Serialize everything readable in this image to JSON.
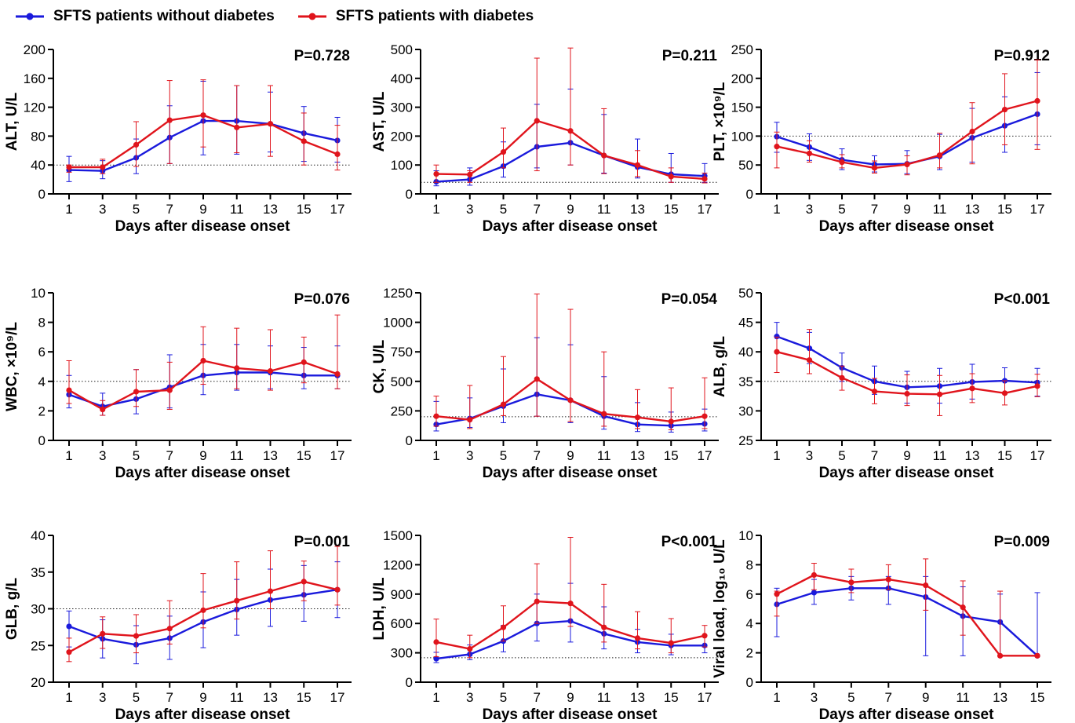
{
  "legend": [
    {
      "name": "SFTS patients without diabetes",
      "color": "#1a1adc"
    },
    {
      "name": "SFTS patients with diabetes",
      "color": "#e0141c"
    }
  ],
  "chart_data": [
    {
      "type": "line",
      "ylabel": "ALT, U/L",
      "xlabel": "Days after disease onset",
      "pvalue": "P=0.728",
      "ylim": [
        0,
        200
      ],
      "yticks": [
        0,
        40,
        80,
        120,
        160,
        200
      ],
      "reference": 40,
      "x": [
        1,
        3,
        5,
        7,
        9,
        11,
        13,
        15,
        17
      ],
      "series": [
        {
          "values": [
            33,
            32,
            50,
            78,
            101,
            101,
            97,
            84,
            74
          ],
          "err_low": [
            17,
            21,
            28,
            42,
            54,
            55,
            58,
            45,
            44
          ],
          "err_high": [
            52,
            46,
            76,
            122,
            156,
            150,
            141,
            121,
            106
          ]
        },
        {
          "values": [
            37,
            37,
            68,
            102,
            109,
            92,
            97,
            73,
            55
          ],
          "err_low": [
            30,
            28,
            38,
            42,
            65,
            57,
            52,
            40,
            33
          ],
          "err_high": [
            40,
            48,
            100,
            157,
            158,
            150,
            150,
            112,
            95
          ]
        }
      ]
    },
    {
      "type": "line",
      "ylabel": "AST, U/L",
      "xlabel": "Days after disease onset",
      "pvalue": "P=0.211",
      "ylim": [
        0,
        500
      ],
      "yticks": [
        0,
        100,
        200,
        300,
        400,
        500
      ],
      "reference": 40,
      "x": [
        1,
        3,
        5,
        7,
        9,
        11,
        13,
        15,
        17
      ],
      "series": [
        {
          "values": [
            42,
            50,
            96,
            163,
            177,
            133,
            93,
            68,
            62
          ],
          "err_low": [
            28,
            30,
            58,
            90,
            100,
            72,
            55,
            40,
            40
          ],
          "err_high": [
            80,
            90,
            180,
            310,
            363,
            275,
            190,
            140,
            105
          ]
        },
        {
          "values": [
            69,
            67,
            145,
            253,
            218,
            133,
            100,
            60,
            52
          ],
          "err_low": [
            40,
            40,
            90,
            80,
            100,
            70,
            60,
            40,
            38
          ],
          "err_high": [
            100,
            80,
            228,
            470,
            505,
            295,
            150,
            90,
            72
          ]
        }
      ]
    },
    {
      "type": "line",
      "ylabel": "PLT, ×10⁹/L",
      "xlabel": "Days after disease onset",
      "pvalue": "P=0.912",
      "ylim": [
        0,
        250
      ],
      "yticks": [
        0,
        50,
        100,
        150,
        200,
        250
      ],
      "reference": 100,
      "x": [
        1,
        3,
        5,
        7,
        9,
        11,
        13,
        15,
        17
      ],
      "series": [
        {
          "values": [
            99,
            81,
            59,
            51,
            52,
            65,
            97,
            118,
            138
          ],
          "err_low": [
            72,
            58,
            42,
            38,
            35,
            42,
            55,
            72,
            85
          ],
          "err_high": [
            124,
            104,
            78,
            66,
            75,
            103,
            148,
            168,
            210
          ]
        },
        {
          "values": [
            82,
            70,
            55,
            45,
            51,
            67,
            108,
            146,
            161
          ],
          "err_low": [
            45,
            55,
            45,
            36,
            33,
            45,
            52,
            85,
            77
          ],
          "err_high": [
            107,
            92,
            68,
            57,
            66,
            105,
            158,
            208,
            232
          ]
        }
      ]
    },
    {
      "type": "line",
      "ylabel": "WBC, ×10⁹/L",
      "xlabel": "Days after disease onset",
      "pvalue": "P=0.076",
      "ylim": [
        0,
        10
      ],
      "yticks": [
        0,
        2,
        4,
        6,
        8,
        10
      ],
      "reference": 4,
      "x": [
        1,
        3,
        5,
        7,
        9,
        11,
        13,
        15,
        17
      ],
      "series": [
        {
          "values": [
            3.1,
            2.3,
            2.8,
            3.6,
            4.4,
            4.6,
            4.6,
            4.4,
            4.4
          ],
          "err_low": [
            2.2,
            1.7,
            1.8,
            2.2,
            3.1,
            3.4,
            3.5,
            3.5,
            3.5
          ],
          "err_high": [
            4.4,
            3.2,
            4.8,
            5.8,
            6.5,
            6.5,
            6.4,
            6.3,
            6.4
          ]
        },
        {
          "values": [
            3.4,
            2.1,
            3.3,
            3.4,
            5.4,
            4.9,
            4.7,
            5.3,
            4.5
          ],
          "err_low": [
            2.5,
            1.7,
            2.3,
            2.1,
            3.8,
            3.5,
            3.4,
            3.9,
            3.5
          ],
          "err_high": [
            5.4,
            2.7,
            4.8,
            5.3,
            7.7,
            7.6,
            7.5,
            7.0,
            8.5
          ]
        }
      ]
    },
    {
      "type": "line",
      "ylabel": "CK, U/L",
      "xlabel": "Days after disease onset",
      "pvalue": "P=0.054",
      "ylim": [
        0,
        1250
      ],
      "yticks": [
        0,
        250,
        500,
        750,
        1000,
        1250
      ],
      "reference": 200,
      "x": [
        1,
        3,
        5,
        7,
        9,
        11,
        13,
        15,
        17
      ],
      "series": [
        {
          "values": [
            135,
            185,
            290,
            390,
            340,
            205,
            135,
            125,
            140
          ],
          "err_low": [
            80,
            110,
            150,
            205,
            150,
            95,
            75,
            70,
            80
          ],
          "err_high": [
            330,
            360,
            605,
            870,
            810,
            540,
            320,
            240,
            265
          ]
        },
        {
          "values": [
            205,
            175,
            305,
            520,
            340,
            225,
            195,
            160,
            205
          ],
          "err_low": [
            120,
            100,
            210,
            205,
            160,
            120,
            100,
            90,
            100
          ],
          "err_high": [
            375,
            465,
            710,
            1240,
            1110,
            750,
            430,
            445,
            530
          ]
        }
      ]
    },
    {
      "type": "line",
      "ylabel": "ALB, g/L",
      "xlabel": "Days after disease onset",
      "pvalue": "P<0.001",
      "ylim": [
        25,
        50
      ],
      "yticks": [
        25,
        30,
        35,
        40,
        45,
        50
      ],
      "reference": 35,
      "x": [
        1,
        3,
        5,
        7,
        9,
        11,
        13,
        15,
        17
      ],
      "series": [
        {
          "values": [
            42.6,
            40.6,
            37.3,
            35.0,
            34.0,
            34.2,
            34.9,
            35.1,
            34.8
          ],
          "err_low": [
            40.0,
            38.0,
            35.0,
            32.8,
            31.3,
            31.3,
            32.0,
            33.0,
            32.5
          ],
          "err_high": [
            45.0,
            43.3,
            39.8,
            37.6,
            36.7,
            37.2,
            37.9,
            37.3,
            37.2
          ]
        },
        {
          "values": [
            40.0,
            38.6,
            35.6,
            33.3,
            32.9,
            32.8,
            33.8,
            33.0,
            34.2
          ],
          "err_low": [
            36.5,
            36.3,
            33.5,
            31.2,
            30.9,
            29.2,
            31.4,
            31.0,
            32.4
          ],
          "err_high": [
            42.5,
            43.8,
            37.6,
            35.5,
            36.1,
            36.0,
            36.3,
            35.1,
            36.2
          ]
        }
      ]
    },
    {
      "type": "line",
      "ylabel": "GLB, g/L",
      "xlabel": "Days after disease onset",
      "pvalue": "P=0.001",
      "ylim": [
        20,
        40
      ],
      "yticks": [
        20,
        25,
        30,
        35,
        40
      ],
      "reference": 30,
      "x": [
        1,
        3,
        5,
        7,
        9,
        11,
        13,
        15,
        17
      ],
      "series": [
        {
          "values": [
            27.6,
            25.9,
            25.1,
            26.0,
            28.2,
            29.9,
            31.2,
            31.9,
            32.6
          ],
          "err_low": [
            24.8,
            23.3,
            22.5,
            23.1,
            24.7,
            26.4,
            27.6,
            28.3,
            28.8
          ],
          "err_high": [
            29.7,
            28.5,
            27.7,
            29.0,
            32.3,
            34.0,
            35.4,
            35.9,
            36.4
          ]
        },
        {
          "values": [
            24.1,
            26.6,
            26.3,
            27.3,
            29.8,
            31.1,
            32.4,
            33.7,
            32.6
          ],
          "err_low": [
            22.8,
            24.6,
            24.0,
            25.2,
            27.4,
            28.6,
            30.0,
            31.1,
            30.5
          ],
          "err_high": [
            26.0,
            28.9,
            29.2,
            31.1,
            34.8,
            36.4,
            37.9,
            36.5,
            38.5
          ]
        }
      ]
    },
    {
      "type": "line",
      "ylabel": "LDH, U/L",
      "xlabel": "Days after disease onset",
      "pvalue": "P<0.001",
      "ylim": [
        0,
        1500
      ],
      "yticks": [
        0,
        300,
        600,
        900,
        1200,
        1500
      ],
      "reference": 250,
      "x": [
        1,
        3,
        5,
        7,
        9,
        11,
        13,
        15,
        17
      ],
      "series": [
        {
          "values": [
            240,
            285,
            420,
            600,
            625,
            495,
            410,
            375,
            375
          ],
          "err_low": [
            200,
            230,
            310,
            420,
            410,
            340,
            300,
            280,
            300
          ],
          "err_high": [
            305,
            380,
            580,
            900,
            1010,
            770,
            540,
            490,
            480
          ]
        },
        {
          "values": [
            410,
            340,
            560,
            825,
            805,
            560,
            450,
            400,
            475
          ],
          "err_low": [
            260,
            250,
            420,
            600,
            570,
            410,
            340,
            300,
            360
          ],
          "err_high": [
            645,
            480,
            780,
            1210,
            1480,
            1000,
            720,
            650,
            580
          ]
        }
      ]
    },
    {
      "type": "line",
      "ylabel": "Viral load, log₁₀ U/L",
      "xlabel": "Days after disease onset",
      "pvalue": "P=0.009",
      "ylim": [
        0,
        10
      ],
      "yticks": [
        0,
        2,
        4,
        6,
        8,
        10
      ],
      "reference": null,
      "x": [
        1,
        3,
        5,
        7,
        9,
        11,
        13,
        15
      ],
      "series": [
        {
          "values": [
            5.3,
            6.1,
            6.4,
            6.4,
            5.8,
            4.5,
            4.1,
            1.8
          ],
          "err_low": [
            3.1,
            5.3,
            5.6,
            5.3,
            1.8,
            1.8,
            1.8,
            1.8
          ],
          "err_high": [
            6.4,
            7.0,
            7.2,
            7.2,
            7.2,
            6.5,
            6.0,
            6.1
          ]
        },
        {
          "values": [
            6.0,
            7.3,
            6.8,
            7.0,
            6.6,
            5.1,
            1.8,
            1.8
          ],
          "err_low": [
            4.5,
            6.3,
            6.1,
            6.3,
            4.9,
            3.2,
            1.8,
            1.8
          ],
          "err_high": [
            6.2,
            8.1,
            7.7,
            8.0,
            8.4,
            6.9,
            6.2,
            1.8
          ]
        }
      ]
    }
  ]
}
